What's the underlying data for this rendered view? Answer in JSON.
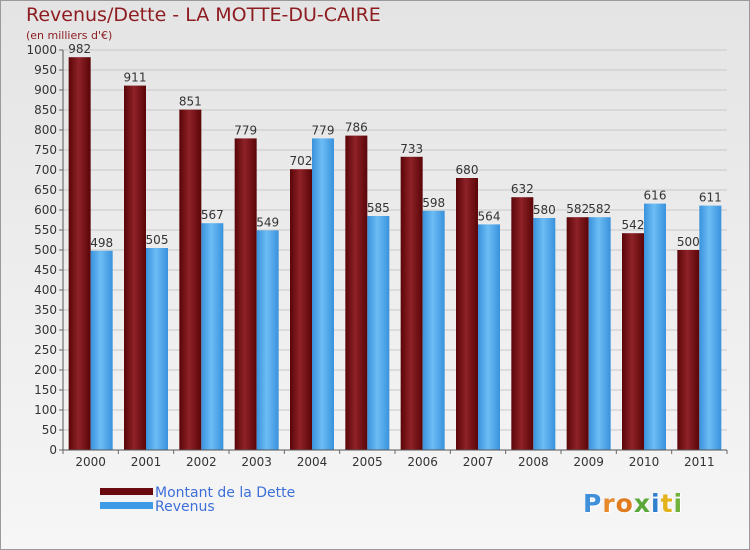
{
  "header": {
    "title": "Revenus/Dette - LA MOTTE-DU-CAIRE",
    "subtitle": "(en milliers d'€)"
  },
  "legend": {
    "items": [
      {
        "label": "Montant de la Dette",
        "color": "#7b0f14"
      },
      {
        "label": "Revenus",
        "color": "#3f9be6"
      }
    ]
  },
  "logo": {
    "text": "Proxiti"
  },
  "chart_data": {
    "type": "bar",
    "title": "Revenus/Dette - LA MOTTE-DU-CAIRE",
    "subtitle": "(en milliers d'€)",
    "categories": [
      "2000",
      "2001",
      "2002",
      "2003",
      "2004",
      "2005",
      "2006",
      "2007",
      "2008",
      "2009",
      "2010",
      "2011"
    ],
    "series": [
      {
        "name": "Montant de la Dette",
        "color": "#7b0f14",
        "values": [
          982,
          911,
          851,
          779,
          702,
          786,
          733,
          680,
          632,
          582,
          542,
          500
        ]
      },
      {
        "name": "Revenus",
        "color": "#3f9be6",
        "values": [
          498,
          505,
          567,
          549,
          779,
          585,
          598,
          564,
          580,
          582,
          616,
          611
        ]
      }
    ],
    "ylim": [
      0,
      1000
    ],
    "ytick_step": 50,
    "grid": true,
    "legend_position": "bottom-left"
  }
}
